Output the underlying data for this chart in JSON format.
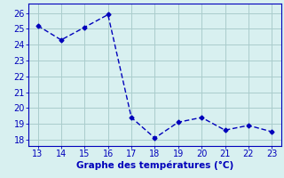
{
  "x": [
    13,
    14,
    15,
    16,
    17,
    18,
    19,
    20,
    21,
    22,
    23
  ],
  "y": [
    25.2,
    24.3,
    25.1,
    25.9,
    19.4,
    18.1,
    19.1,
    19.4,
    18.6,
    18.9,
    18.5
  ],
  "line_color": "#0000bb",
  "marker": "D",
  "marker_size": 2.5,
  "line_width": 1.0,
  "xlabel": "Graphe des températures (°C)",
  "xlabel_color": "#0000bb",
  "xlabel_fontsize": 7.5,
  "bg_color": "#d8f0f0",
  "grid_color": "#aacccc",
  "tick_color": "#0000bb",
  "tick_fontsize": 7,
  "xlim": [
    12.6,
    23.4
  ],
  "ylim": [
    17.6,
    26.6
  ],
  "yticks": [
    18,
    19,
    20,
    21,
    22,
    23,
    24,
    25,
    26
  ],
  "xticks": [
    13,
    14,
    15,
    16,
    17,
    18,
    19,
    20,
    21,
    22,
    23
  ],
  "spine_color": "#0000bb"
}
